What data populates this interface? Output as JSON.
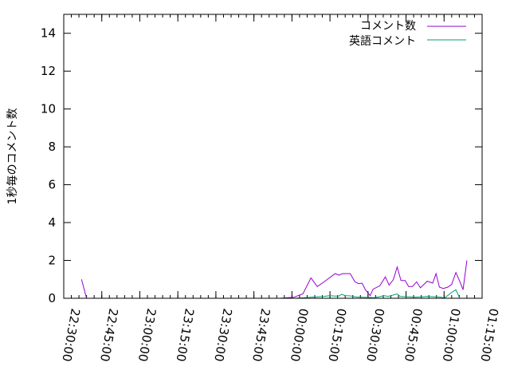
{
  "chart_data": {
    "type": "line",
    "title": "",
    "xlabel": "",
    "ylabel": "1秒毎のコメント数",
    "xlim": [
      "22:30:00",
      "01:15:00"
    ],
    "ylim": [
      0,
      15
    ],
    "x_ticks": [
      "22:30:00",
      "22:45:00",
      "23:00:00",
      "23:15:00",
      "23:30:00",
      "23:45:00",
      "00:00:00",
      "00:15:00",
      "00:30:00",
      "00:45:00",
      "01:00:00",
      "01:15:00"
    ],
    "y_ticks": [
      "0",
      "2",
      "4",
      "6",
      "8",
      "10",
      "12",
      "14"
    ],
    "grid": false,
    "legend": "top-right",
    "series": [
      {
        "name": "コメント数",
        "color": "#9400d3",
        "points": [
          [
            "22:37:00",
            1.0
          ],
          [
            "22:39:00",
            0
          ],
          null,
          [
            "23:48:40",
            0
          ],
          [
            "23:51:50",
            0
          ],
          null,
          [
            "23:55:00",
            0
          ],
          [
            "00:00:40",
            0.05
          ],
          [
            "00:04:20",
            0.24
          ],
          [
            "00:07:30",
            1.08
          ],
          [
            "00:10:00",
            0.62
          ],
          [
            "00:12:40",
            0.87
          ],
          [
            "00:17:00",
            1.3
          ],
          [
            "00:18:30",
            1.22
          ],
          [
            "00:20:00",
            1.3
          ],
          [
            "00:23:00",
            1.3
          ],
          [
            "00:24:50",
            0.87
          ],
          [
            "00:26:20",
            0.77
          ],
          [
            "00:27:40",
            0.8
          ],
          [
            "00:29:00",
            0.45
          ],
          [
            "00:30:50",
            0.14
          ],
          [
            "00:32:00",
            0.48
          ],
          [
            "00:34:40",
            0.66
          ],
          [
            "00:36:50",
            1.13
          ],
          [
            "00:38:20",
            0.7
          ],
          [
            "00:40:00",
            0.98
          ],
          [
            "00:41:30",
            1.65
          ],
          [
            "00:43:00",
            0.94
          ],
          [
            "00:44:40",
            0.94
          ],
          [
            "00:46:00",
            0.62
          ],
          [
            "00:47:30",
            0.62
          ],
          [
            "00:49:10",
            0.87
          ],
          [
            "00:50:40",
            0.55
          ],
          [
            "00:53:20",
            0.9
          ],
          [
            "00:55:30",
            0.8
          ],
          [
            "00:56:50",
            1.3
          ],
          [
            "00:58:10",
            0.59
          ],
          [
            "00:59:40",
            0.52
          ],
          [
            "01:01:30",
            0.59
          ],
          [
            "01:03:00",
            0.73
          ],
          [
            "01:04:40",
            1.36
          ],
          [
            "01:06:10",
            0.9
          ],
          [
            "01:07:30",
            0.45
          ],
          [
            "01:09:00",
            2.0
          ]
        ]
      },
      {
        "name": "英語コメント",
        "color": "#009e73",
        "points": [
          [
            "00:01:00",
            0
          ],
          [
            "00:12:40",
            0.1
          ],
          [
            "00:14:50",
            0.14
          ],
          [
            "00:17:00",
            0.12
          ],
          [
            "00:18:30",
            0.12
          ],
          [
            "00:19:40",
            0.21
          ],
          [
            "00:21:00",
            0.14
          ],
          [
            "00:22:40",
            0.13
          ],
          [
            "00:25:20",
            0.07
          ],
          [
            "00:28:30",
            0.05
          ],
          [
            "00:32:40",
            0.03
          ],
          [
            "00:36:20",
            0.14
          ],
          [
            "00:38:00",
            0.1
          ],
          [
            "00:41:30",
            0.23
          ],
          [
            "00:42:40",
            0.1
          ],
          [
            "00:48:30",
            0.06
          ],
          [
            "00:53:40",
            0.1
          ],
          [
            "00:58:50",
            0.06
          ],
          [
            "01:00:00",
            0
          ],
          [
            "01:03:00",
            0.31
          ],
          [
            "01:04:40",
            0.45
          ],
          [
            "01:06:10",
            0
          ]
        ]
      }
    ]
  }
}
